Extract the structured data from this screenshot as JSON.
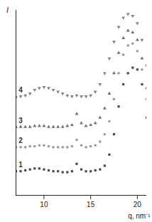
{
  "chart_data": {
    "type": "scatter",
    "x_label": "q, nm⁻¹",
    "y_label": "I",
    "x": [
      7,
      7.5,
      8,
      8.5,
      9,
      9.5,
      10,
      10.5,
      11,
      11.5,
      12,
      12.5,
      13,
      13.5,
      14,
      14.5,
      15,
      15.5,
      16,
      16.5,
      17,
      17.5,
      18,
      18.5,
      19,
      19.5,
      20,
      20.5,
      21
    ],
    "series": [
      {
        "name": "1",
        "color": "#4a4a4a",
        "marker": "square",
        "values": [
          13,
          13,
          13.5,
          14,
          14.5,
          14.5,
          14,
          13.5,
          13,
          13,
          12.5,
          12.5,
          13,
          17,
          14,
          13,
          13,
          13.5,
          14,
          16,
          22,
          33,
          48,
          60,
          66,
          69,
          68,
          60,
          42
        ]
      },
      {
        "name": "2",
        "color": "#9a9a9a",
        "marker": "circle",
        "values": [
          26,
          26,
          26,
          26.5,
          26.5,
          27,
          27,
          26.5,
          26,
          26,
          26,
          26,
          26.5,
          30,
          27,
          26,
          26.5,
          27,
          29,
          33,
          40,
          52,
          66,
          76,
          81,
          82,
          78,
          68,
          52
        ]
      },
      {
        "name": "3",
        "color": "#6e6e6e",
        "marker": "triangle",
        "values": [
          37,
          37,
          37,
          37,
          37.5,
          37.5,
          37.5,
          37,
          37,
          37,
          37,
          37.5,
          38,
          44,
          39,
          37.5,
          38,
          39,
          42,
          47,
          55,
          66,
          77,
          85,
          89,
          88,
          84,
          74,
          58
        ]
      },
      {
        "name": "4",
        "color": "#808080",
        "marker": "triangle-down",
        "values": [
          53,
          53.5,
          54,
          55,
          57,
          58,
          58.5,
          58,
          57,
          56,
          55,
          54,
          53.5,
          54,
          53.5,
          53.5,
          54,
          56,
          60,
          66,
          74,
          83,
          91,
          96,
          98,
          97,
          93,
          84,
          70
        ]
      }
    ],
    "xlim": [
      7,
      21
    ],
    "xticks": [
      10,
      15,
      20
    ],
    "ylim": [
      0,
      100
    ],
    "yticks": [],
    "tick_labels": "x"
  }
}
